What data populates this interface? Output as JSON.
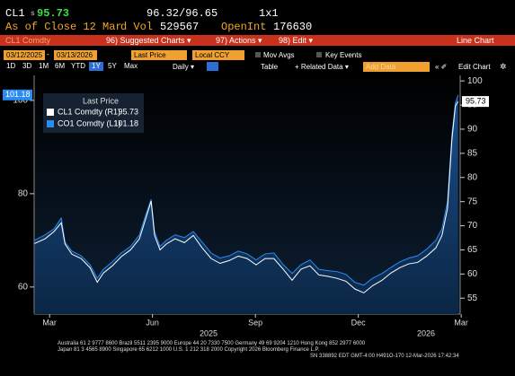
{
  "header": {
    "ticker": "CL1",
    "price_prefix": "s",
    "price": "95.73",
    "bid_ask": "96.32/96.65",
    "size": "1x1",
    "as_of": "As of Close 12 Mar",
    "vol_label": "d Vol",
    "vol": "529567",
    "oi_label": "OpenInt",
    "oi": "176630"
  },
  "menu": {
    "security": "CL1 Comdty",
    "items": [
      "96) Suggested Charts ▾",
      "97) Actions ▾",
      "98) Edit ▾"
    ],
    "chart_type": "Line Chart"
  },
  "controls": {
    "start": "03/12/2025",
    "end": "03/13/2026",
    "field": "Last Price",
    "currency": "Local CCY",
    "mov_avgs": "Mov Avgs",
    "key_events": "Key Events"
  },
  "toolbar": {
    "periods": [
      "1D",
      "3D",
      "1M",
      "6M",
      "YTD",
      "1Y",
      "5Y",
      "Max"
    ],
    "active_period": "1Y",
    "frequency": "Daily ▾",
    "table": "Table",
    "related": "+ Related Data ▾",
    "add_data": "Add Data",
    "edit": "Edit Chart"
  },
  "chart_data": {
    "type": "line",
    "legend_title": "Last Price",
    "x": [
      0.06,
      0.37,
      0.63,
      0.84,
      0.95,
      1.15,
      1.42,
      1.68,
      1.89,
      2.07,
      2.33,
      2.59,
      2.86,
      3.12,
      3.3,
      3.46,
      3.56,
      3.72,
      3.9,
      4.16,
      4.43,
      4.69,
      4.95,
      5.21,
      5.47,
      5.74,
      6.0,
      6.26,
      6.52,
      6.78,
      7.04,
      7.31,
      7.57,
      7.83,
      8.09,
      8.35,
      8.62,
      8.88,
      9.14,
      9.4,
      9.66,
      9.92,
      10.19,
      10.45,
      10.71,
      10.97,
      11.23,
      11.49,
      11.76,
      11.94,
      12.1,
      12.23,
      12.33,
      12.41
    ],
    "series": [
      {
        "name": "CO1 Comdty (L1)",
        "color": "#2b8bf0",
        "axis": "y",
        "area": true,
        "values": [
          70,
          71.2,
          72.5,
          74.8,
          69.6,
          67.7,
          66.7,
          64.8,
          61.9,
          63.8,
          65.4,
          67.3,
          68.7,
          71.2,
          75.4,
          78.8,
          71.9,
          68.7,
          70,
          71.2,
          70.6,
          71.9,
          69.6,
          67.3,
          66.2,
          66.7,
          67.7,
          67.1,
          65.8,
          67.1,
          67.3,
          64.8,
          62.9,
          64.8,
          65.8,
          63.8,
          63.5,
          63.3,
          62.7,
          61,
          60.4,
          61.9,
          62.9,
          64.2,
          65.4,
          66.2,
          66.7,
          68.1,
          70,
          72.5,
          78.3,
          92.7,
          99.4,
          101.18
        ]
      },
      {
        "name": "CL1 Comdty (R1)",
        "color": "#ffffff",
        "axis": "y2",
        "values": [
          66.3,
          67.3,
          68.8,
          70.6,
          66.2,
          64.1,
          63.2,
          61.3,
          58.3,
          60.2,
          61.7,
          63.6,
          65,
          67.3,
          71.4,
          75.1,
          68,
          65,
          66.2,
          67.3,
          66.5,
          68,
          65.4,
          63.2,
          62.2,
          62.8,
          63.7,
          63.2,
          61.9,
          63.2,
          63.2,
          61,
          58.7,
          61,
          61.7,
          59.8,
          59.5,
          59.1,
          58.5,
          56.9,
          56.1,
          57.6,
          58.7,
          60.2,
          61.3,
          62.1,
          62.4,
          63.7,
          65.4,
          68,
          73.6,
          87.9,
          94.8,
          95.73
        ]
      }
    ],
    "xlim": [
      0.05,
      12.47
    ],
    "xticks": [
      {
        "value": 0.5,
        "label": "Mar"
      },
      {
        "value": 3.5,
        "label": "Jun"
      },
      {
        "value": 6.5,
        "label": "Sep"
      },
      {
        "value": 9.5,
        "label": "Dec"
      },
      {
        "value": 12.5,
        "label": "Mar"
      }
    ],
    "year_labels": [
      "2025",
      "2026"
    ],
    "ylim": [
      54.2,
      104.6
    ],
    "yticks": [
      60,
      80,
      100
    ],
    "y2lim": [
      51.7,
      100.4
    ],
    "y2ticks": [
      55,
      60,
      65,
      70,
      75,
      80,
      85,
      90,
      95,
      100
    ]
  },
  "footer": [
    "Australia 61 2 9777 8600 Brazil 5511 2395 9000 Europe 44 20 7330 7500 Germany 49 69 9204 1210 Hong Kong 852 2977 6000",
    "Japan 81 3 4565 8900 Singapore 65 6212 1000 U.S. 1 212 318 2000 Copyright 2026 Bloomberg Finance L.P.",
    "SN 338892 EDT GMT-4:00 H491O-170 12-Mar-2026 17:42:34"
  ]
}
